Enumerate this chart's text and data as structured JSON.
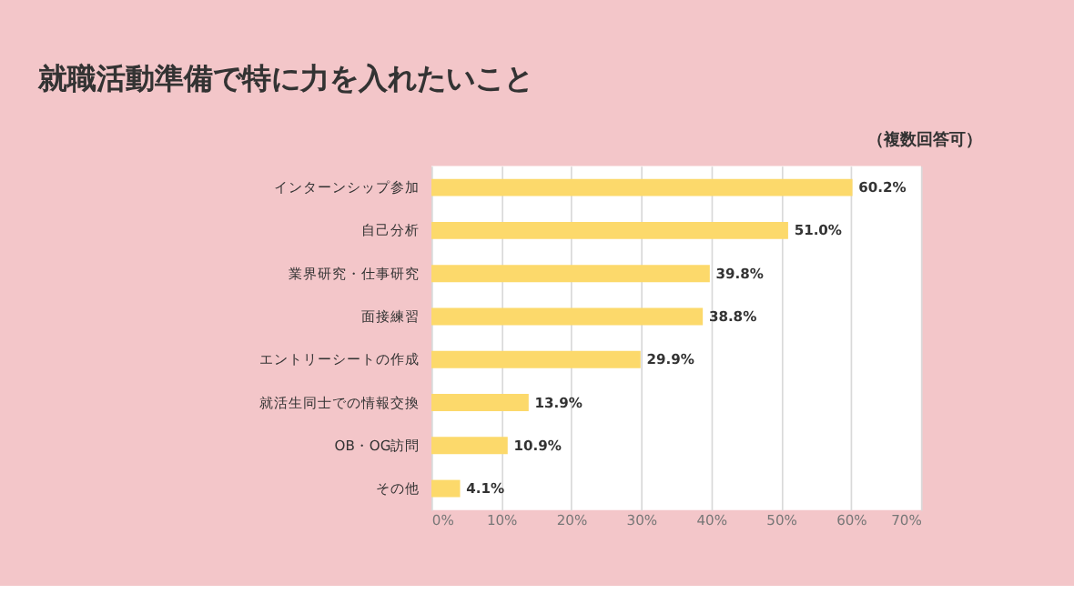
{
  "chart_data": {
    "type": "bar",
    "orientation": "horizontal",
    "title": "就職活動準備で特に力を入れたいこと",
    "subtitle": "（複数回答可）",
    "categories": [
      "インターンシップ参加",
      "自己分析",
      "業界研究・仕事研究",
      "面接練習",
      "エントリーシートの作成",
      "就活生同士での情報交換",
      "OB・OG訪問",
      "その他"
    ],
    "values": [
      60.2,
      51.0,
      39.8,
      38.8,
      29.9,
      13.9,
      10.9,
      4.1
    ],
    "value_labels": [
      "60.2%",
      "51.0%",
      "39.8%",
      "38.8%",
      "29.9%",
      "13.9%",
      "10.9%",
      "4.1%"
    ],
    "color": "#fcd96b",
    "xlim": [
      0,
      70
    ],
    "xticks": [
      {
        "value": 0,
        "label": "0%"
      },
      {
        "value": 10,
        "label": "10%"
      },
      {
        "value": 20,
        "label": "20%"
      },
      {
        "value": 30,
        "label": "30%"
      },
      {
        "value": 40,
        "label": "40%"
      },
      {
        "value": 50,
        "label": "50%"
      },
      {
        "value": 60,
        "label": "60%"
      },
      {
        "value": 70,
        "label": "70%"
      }
    ],
    "grid": "x"
  }
}
